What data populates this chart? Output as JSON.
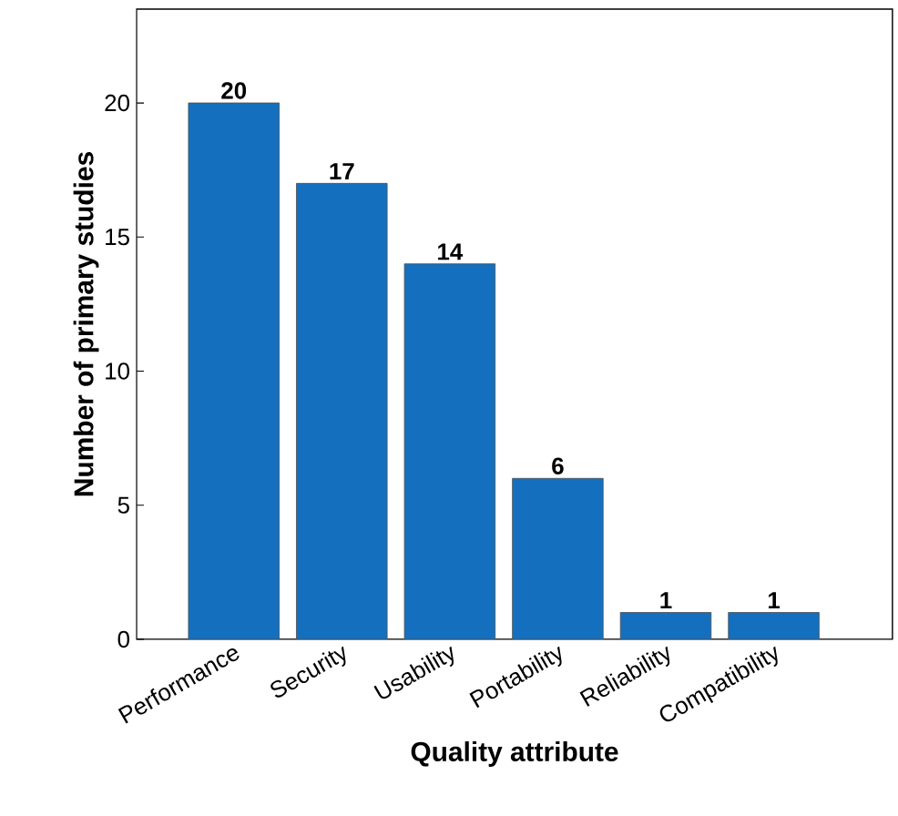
{
  "chart_data": {
    "type": "bar",
    "xlabel": "Quality attribute",
    "ylabel": "Number of primary studies",
    "categories": [
      "Performance",
      "Security",
      "Usability",
      "Portability",
      "Reliability",
      "Compatibility"
    ],
    "values": [
      20,
      17,
      14,
      6,
      1,
      1
    ],
    "color": "#1470bf",
    "ylim": [
      0,
      23.5
    ],
    "yticks": [
      0,
      5,
      10,
      15,
      20
    ],
    "data_labels": true,
    "grid": false
  }
}
